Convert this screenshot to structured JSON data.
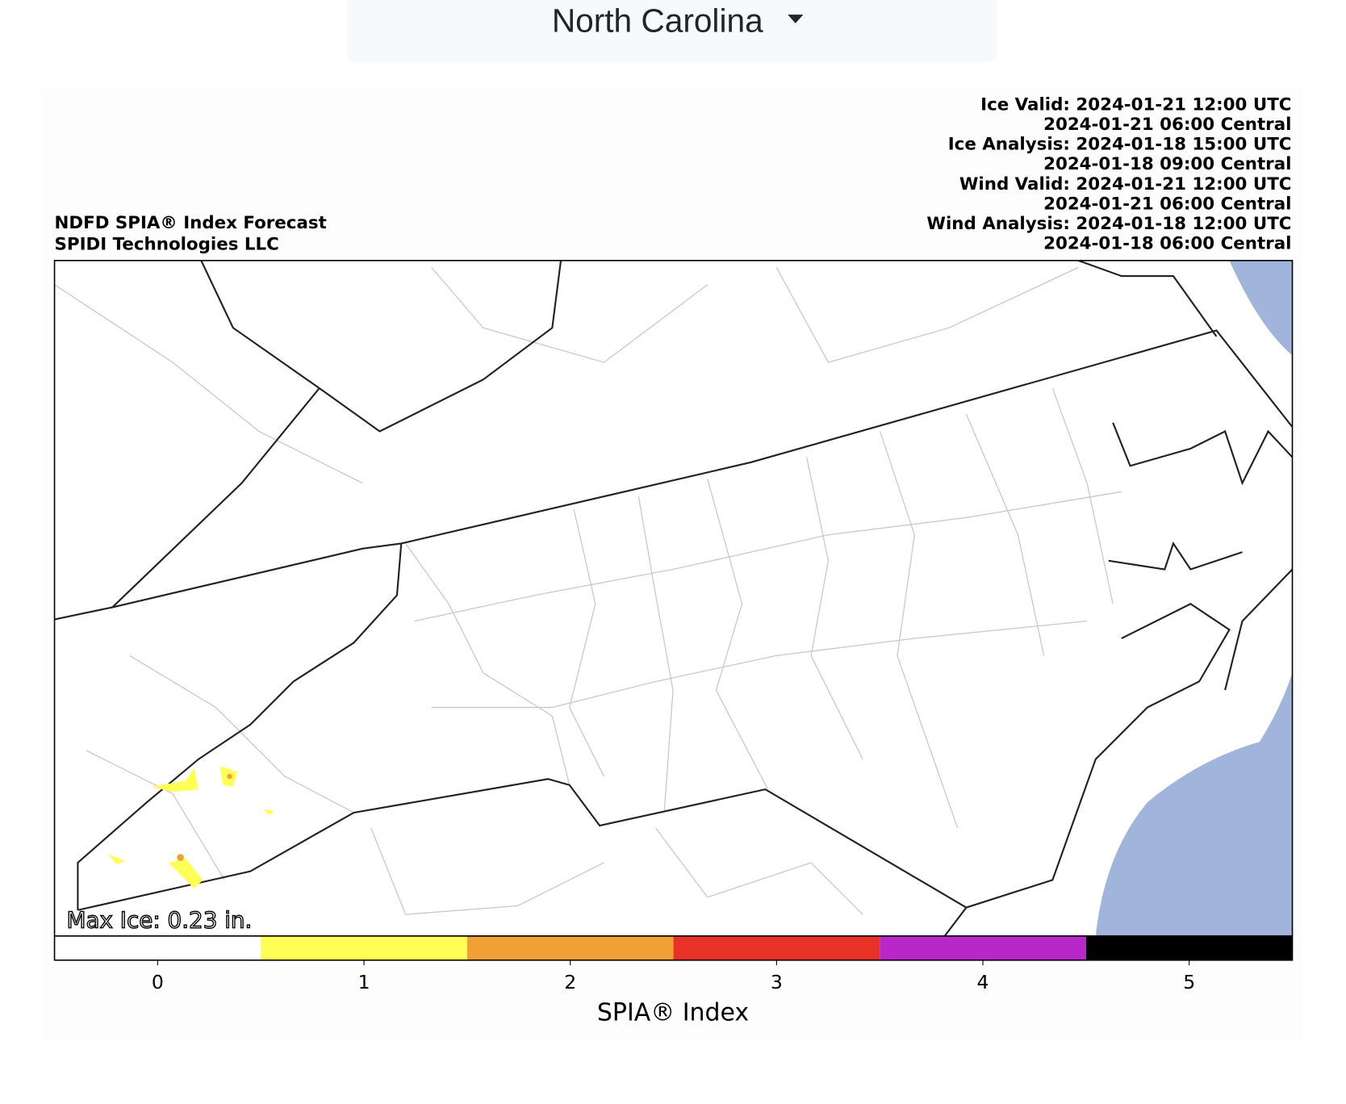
{
  "dropdown": {
    "label": "North Carolina"
  },
  "map": {
    "title": [
      "NDFD SPIA® Index Forecast",
      "SPIDI Technologies LLC"
    ],
    "info": [
      "Ice Valid: 2024-01-21 12:00 UTC",
      "2024-01-21 06:00 Central",
      "Ice Analysis: 2024-01-18 15:00 UTC",
      "2024-01-18 09:00 Central",
      "Wind Valid: 2024-01-21 12:00 UTC",
      "2024-01-21 06:00 Central",
      "Wind Analysis: 2024-01-18 12:00 UTC",
      "2024-01-18 06:00 Central"
    ],
    "max_ice": "Max Ice: 0.23 in.",
    "colorbar": {
      "ticks": [
        0,
        1,
        2,
        3,
        4,
        5
      ],
      "colors": [
        "#ffffff",
        "#ffff55",
        "#f0a035",
        "#e83228",
        "#b828c8",
        "#000000"
      ],
      "label": "SPIA® Index"
    }
  }
}
